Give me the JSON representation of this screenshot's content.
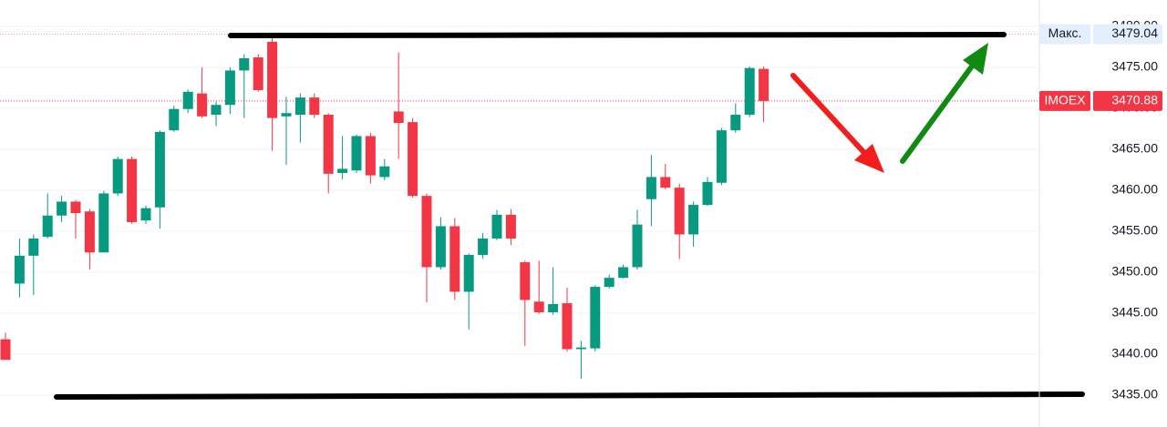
{
  "chart_data": {
    "type": "candlestick",
    "up_color": "#089981",
    "down_color": "#f23645",
    "grid": true,
    "ylim": [
      3431.1,
      3483.2
    ],
    "yticks": [
      {
        "value": 3435,
        "label": "3435.00"
      },
      {
        "value": 3440,
        "label": "3440.00"
      },
      {
        "value": 3445,
        "label": "3445.00"
      },
      {
        "value": 3450,
        "label": "3450.00"
      },
      {
        "value": 3455,
        "label": "3455.00"
      },
      {
        "value": 3460,
        "label": "3460.00"
      },
      {
        "value": 3465,
        "label": "3465.00"
      },
      {
        "value": 3470,
        "label": "3470.00"
      },
      {
        "value": 3475,
        "label": "3475.00"
      },
      {
        "value": 3480,
        "label": "3480.00"
      }
    ],
    "open": [
      3441.8,
      3448.6,
      3452.0,
      3454.3,
      3456.9,
      3458.6,
      3457.4,
      3452.4,
      3459.6,
      3463.8,
      3456.3,
      3457.9,
      3467.3,
      3469.9,
      3471.8,
      3469.2,
      3470.4,
      3474.6,
      3476.2,
      3478.1,
      3469.0,
      3469.2,
      3471.3,
      3469.2,
      3462.1,
      3462.4,
      3466.6,
      3461.6,
      3469.6,
      3468.3,
      3459.3,
      3450.6,
      3455.6,
      3447.6,
      3452.1,
      3454.1,
      3457.0,
      3451.2,
      3446.4,
      3445.1,
      3446.2,
      3440.6,
      3440.7,
      3448.2,
      3449.3,
      3450.6,
      3458.9,
      3461.6,
      3460.3,
      3454.6,
      3458.2,
      3460.9,
      3467.3,
      3469.2,
      3474.8
    ],
    "high": [
      3442.6,
      3454.1,
      3454.6,
      3459.6,
      3459.3,
      3458.8,
      3457.7,
      3459.9,
      3464.1,
      3464.1,
      3458.1,
      3467.3,
      3470.3,
      3472.3,
      3475.0,
      3470.8,
      3475.0,
      3476.6,
      3476.6,
      3479.04,
      3471.4,
      3471.8,
      3471.8,
      3469.4,
      3466.6,
      3466.8,
      3467.0,
      3463.8,
      3476.8,
      3468.8,
      3459.6,
      3456.7,
      3456.6,
      3452.3,
      3454.8,
      3457.6,
      3457.7,
      3451.4,
      3451.4,
      3450.6,
      3448.1,
      3441.6,
      3448.4,
      3449.7,
      3450.9,
      3457.6,
      3464.3,
      3463.2,
      3460.8,
      3458.6,
      3461.6,
      3467.6,
      3470.6,
      3475.1,
      3475.1
    ],
    "low": [
      3439.3,
      3446.9,
      3447.2,
      3454.1,
      3456.1,
      3454.1,
      3450.3,
      3452.4,
      3459.3,
      3455.9,
      3455.9,
      3455.3,
      3467.1,
      3469.4,
      3468.8,
      3467.8,
      3469.3,
      3468.8,
      3472.0,
      3464.8,
      3463.1,
      3465.8,
      3468.8,
      3459.6,
      3461.3,
      3462.1,
      3460.8,
      3461.2,
      3463.8,
      3459.1,
      3446.3,
      3450.3,
      3446.6,
      3443.0,
      3451.6,
      3453.9,
      3453.3,
      3441.0,
      3444.9,
      3444.8,
      3440.3,
      3437.0,
      3440.3,
      3448.0,
      3449.2,
      3450.3,
      3455.6,
      3460.1,
      3451.6,
      3453.1,
      3458.1,
      3460.6,
      3467.0,
      3468.9,
      3468.3
    ],
    "close": [
      3439.3,
      3452.0,
      3454.1,
      3456.9,
      3458.6,
      3457.2,
      3452.4,
      3459.6,
      3463.8,
      3456.1,
      3457.8,
      3467.1,
      3469.9,
      3472.0,
      3469.0,
      3470.4,
      3474.6,
      3476.1,
      3472.2,
      3468.8,
      3469.4,
      3471.3,
      3469.2,
      3462.0,
      3462.6,
      3466.6,
      3461.8,
      3462.9,
      3468.2,
      3459.3,
      3450.6,
      3455.6,
      3447.6,
      3452.1,
      3454.1,
      3457.0,
      3454.1,
      3446.6,
      3445.1,
      3446.1,
      3440.6,
      3440.8,
      3448.2,
      3449.3,
      3450.6,
      3455.8,
      3461.6,
      3460.3,
      3454.6,
      3458.2,
      3461.0,
      3467.3,
      3469.2,
      3474.9,
      3470.88
    ],
    "price_labels": [
      {
        "label": "Макс.",
        "value": 3479.04
      },
      {
        "label": "IMOEX",
        "value": 3470.88
      }
    ]
  }
}
